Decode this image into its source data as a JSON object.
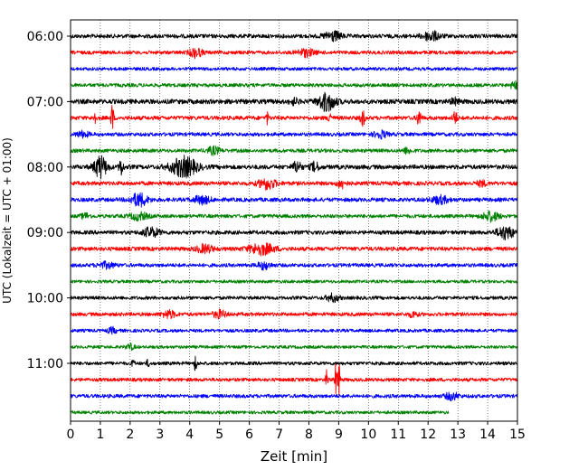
{
  "chart_data": {
    "type": "line",
    "title": "",
    "xlabel": "Zeit  [min]",
    "ylabel": "UTC (Lokalzeit = UTC + 01:00)",
    "xlim": [
      0,
      15
    ],
    "x_ticks": [
      "0",
      "1",
      "2",
      "3",
      "4",
      "5",
      "6",
      "7",
      "8",
      "9",
      "10",
      "11",
      "12",
      "13",
      "14",
      "15"
    ],
    "y_ticks": [
      "06:00",
      "07:00",
      "08:00",
      "09:00",
      "10:00",
      "11:00"
    ],
    "trace_interval_min": 15,
    "start_time": "06:00",
    "grid": "vertical dotted at each minute",
    "color_cycle": [
      "#000000",
      "#ff0000",
      "#0000ff",
      "#008000"
    ],
    "traces": [
      {
        "label": "06:00",
        "end": 15,
        "amp": 2.2,
        "events": [
          [
            8.8,
            5,
            0.2
          ],
          [
            12.1,
            5,
            0.2
          ]
        ]
      },
      {
        "label": "06:15",
        "end": 15,
        "amp": 2.0,
        "events": [
          [
            4.2,
            5,
            0.15
          ],
          [
            7.9,
            4,
            0.2
          ]
        ]
      },
      {
        "label": "06:30",
        "end": 15,
        "amp": 1.8,
        "events": []
      },
      {
        "label": "06:45",
        "end": 15,
        "amp": 2.0,
        "events": [
          [
            14.9,
            4,
            0.1
          ]
        ]
      },
      {
        "label": "07:00",
        "end": 15,
        "amp": 2.6,
        "events": [
          [
            8.6,
            10,
            0.2
          ],
          [
            7.5,
            3,
            0.1
          ],
          [
            12.9,
            3,
            0.1
          ]
        ]
      },
      {
        "label": "07:15",
        "end": 15,
        "amp": 2.2,
        "events": [
          [
            1.4,
            18,
            0.03
          ],
          [
            0.8,
            9,
            0.03
          ],
          [
            8.7,
            11,
            0.03
          ],
          [
            9.8,
            9,
            0.05
          ],
          [
            11.7,
            9,
            0.05
          ],
          [
            12.9,
            8,
            0.05
          ],
          [
            6.6,
            6,
            0.03
          ]
        ]
      },
      {
        "label": "07:30",
        "end": 15,
        "amp": 2.0,
        "events": [
          [
            10.4,
            4,
            0.15
          ],
          [
            0.4,
            3,
            0.15
          ]
        ]
      },
      {
        "label": "07:45",
        "end": 15,
        "amp": 2.0,
        "events": [
          [
            4.8,
            4,
            0.15
          ],
          [
            11.3,
            3,
            0.1
          ]
        ]
      },
      {
        "label": "08:00",
        "end": 15,
        "amp": 2.4,
        "events": [
          [
            1.0,
            12,
            0.15
          ],
          [
            1.7,
            9,
            0.05
          ],
          [
            3.8,
            11,
            0.3
          ],
          [
            7.6,
            6,
            0.1
          ],
          [
            8.2,
            5,
            0.1
          ]
        ]
      },
      {
        "label": "08:15",
        "end": 15,
        "amp": 2.2,
        "events": [
          [
            6.6,
            6,
            0.2
          ],
          [
            9.1,
            5,
            0.1
          ],
          [
            13.8,
            3,
            0.1
          ]
        ]
      },
      {
        "label": "08:30",
        "end": 15,
        "amp": 2.2,
        "events": [
          [
            2.3,
            7,
            0.2
          ],
          [
            4.4,
            4,
            0.2
          ],
          [
            12.4,
            4,
            0.2
          ]
        ]
      },
      {
        "label": "08:45",
        "end": 15,
        "amp": 2.0,
        "events": [
          [
            2.3,
            4,
            0.2
          ],
          [
            14.1,
            5,
            0.2
          ],
          [
            0.5,
            3,
            0.1
          ]
        ]
      },
      {
        "label": "09:00",
        "end": 15,
        "amp": 2.2,
        "events": [
          [
            2.7,
            5,
            0.2
          ],
          [
            14.6,
            7,
            0.2
          ]
        ]
      },
      {
        "label": "09:15",
        "end": 15,
        "amp": 2.2,
        "events": [
          [
            6.4,
            6,
            0.3
          ],
          [
            4.5,
            4,
            0.2
          ]
        ]
      },
      {
        "label": "09:30",
        "end": 15,
        "amp": 2.0,
        "events": [
          [
            6.5,
            4,
            0.15
          ],
          [
            1.2,
            3,
            0.2
          ]
        ]
      },
      {
        "label": "09:45",
        "end": 15,
        "amp": 1.7,
        "events": []
      },
      {
        "label": "10:00",
        "end": 15,
        "amp": 1.9,
        "events": [
          [
            8.8,
            4,
            0.15
          ]
        ]
      },
      {
        "label": "10:15",
        "end": 15,
        "amp": 2.0,
        "events": [
          [
            3.3,
            4,
            0.15
          ],
          [
            5.0,
            4,
            0.15
          ],
          [
            11.5,
            3,
            0.1
          ]
        ]
      },
      {
        "label": "10:30",
        "end": 15,
        "amp": 1.8,
        "events": [
          [
            1.4,
            3,
            0.1
          ]
        ]
      },
      {
        "label": "10:45",
        "end": 15,
        "amp": 1.7,
        "events": [
          [
            2.0,
            3,
            0.1
          ]
        ]
      },
      {
        "label": "11:00",
        "end": 15,
        "amp": 1.9,
        "events": [
          [
            4.2,
            10,
            0.03
          ],
          [
            2.1,
            5,
            0.03
          ],
          [
            2.6,
            4,
            0.03
          ]
        ]
      },
      {
        "label": "11:15",
        "end": 15,
        "amp": 1.9,
        "events": [
          [
            8.6,
            10,
            0.03
          ],
          [
            8.9,
            16,
            0.03
          ],
          [
            9.0,
            20,
            0.03
          ]
        ]
      },
      {
        "label": "11:30",
        "end": 15,
        "amp": 2.0,
        "events": [
          [
            12.8,
            4,
            0.15
          ]
        ]
      },
      {
        "label": "11:45",
        "end": 12.7,
        "amp": 1.7,
        "events": []
      }
    ]
  }
}
